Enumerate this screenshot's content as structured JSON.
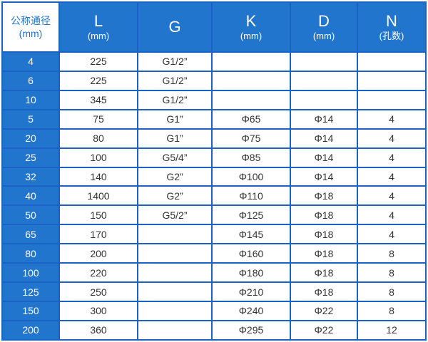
{
  "header": {
    "corner": [
      "公称通径",
      "(mm)"
    ],
    "columns": [
      {
        "label": "L",
        "unit": "(mm)"
      },
      {
        "label": "G",
        "unit": ""
      },
      {
        "label": "K",
        "unit": "(mm)"
      },
      {
        "label": "D",
        "unit": "(mm)"
      },
      {
        "label": "N",
        "unit": "(孔数)"
      }
    ]
  },
  "rows": [
    [
      "4",
      "225",
      "G1/2”",
      "",
      "",
      ""
    ],
    [
      "6",
      "225",
      "G1/2”",
      "",
      "",
      ""
    ],
    [
      "10",
      "345",
      "G1/2”",
      "",
      "",
      ""
    ],
    [
      "5",
      "75",
      "G1”",
      "Φ65",
      "Φ14",
      "4"
    ],
    [
      "20",
      "80",
      "G1”",
      "Φ75",
      "Φ14",
      "4"
    ],
    [
      "25",
      "100",
      "G5/4”",
      "Φ85",
      "Φ14",
      "4"
    ],
    [
      "32",
      "140",
      "G2”",
      "Φ100",
      "Φ14",
      "4"
    ],
    [
      "40",
      "1400",
      "G2”",
      "Φ110",
      "Φ18",
      "4"
    ],
    [
      "50",
      "150",
      "G5/2”",
      "Φ125",
      "Φ18",
      "4"
    ],
    [
      "65",
      "170",
      "",
      "Φ145",
      "Φ18",
      "4"
    ],
    [
      "80",
      "200",
      "",
      "Φ160",
      "Φ18",
      "8"
    ],
    [
      "100",
      "220",
      "",
      "Φ180",
      "Φ18",
      "8"
    ],
    [
      "125",
      "250",
      "",
      "Φ210",
      "Φ18",
      "8"
    ],
    [
      "150",
      "300",
      "",
      "Φ240",
      "Φ22",
      "8"
    ],
    [
      "200",
      "360",
      "",
      "Φ295",
      "Φ22",
      "12"
    ]
  ],
  "colors": {
    "header_bg": "#2275cd",
    "grid": "#1a62c6"
  }
}
